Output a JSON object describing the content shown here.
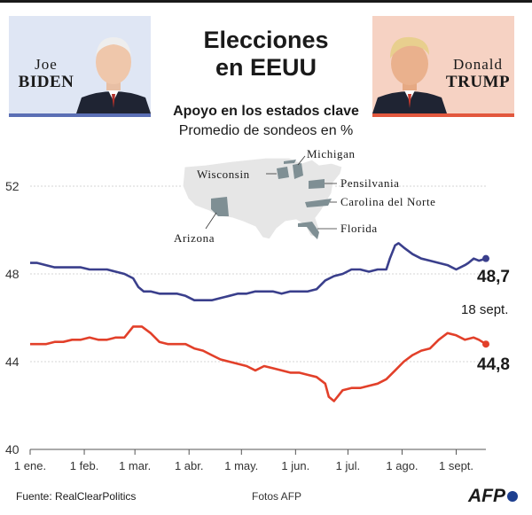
{
  "header": {
    "title_line1": "Elecciones",
    "title_line2": "en EEUU",
    "left_candidate": {
      "first": "Joe",
      "last": "Biden"
    },
    "right_candidate": {
      "first": "Donald",
      "last": "Trump"
    }
  },
  "subtitle_line1": "Apoyo en los estados clave",
  "subtitle_line2": "Promedio de sondeos en %",
  "colors": {
    "biden": "#3a3f8c",
    "trump": "#e2402a",
    "biden_panel": "#dfe6f4",
    "trump_panel": "#f6d2c3",
    "map_fill": "#e6e6e6",
    "state_fill": "#7f8f94"
  },
  "map": {
    "states": [
      "Wisconsin",
      "Michigan",
      "Pensilvania",
      "Carolina del Norte",
      "Florida",
      "Arizona"
    ]
  },
  "chart_data": {
    "type": "line",
    "ylim": [
      40,
      52
    ],
    "yticks": [
      40,
      44,
      48,
      52
    ],
    "x_tick_labels": [
      "1 ene.",
      "1 feb.",
      "1 mar.",
      "1 abr.",
      "1 may.",
      "1 jun.",
      "1 jul.",
      "1 ago.",
      "1 sept."
    ],
    "x_tick_days": [
      1,
      32,
      61,
      92,
      122,
      153,
      183,
      214,
      245
    ],
    "xlim_days": [
      1,
      262
    ],
    "series": [
      {
        "name": "Biden",
        "color": "#3a3f8c",
        "days": [
          1,
          5,
          10,
          15,
          20,
          25,
          30,
          35,
          40,
          45,
          50,
          55,
          60,
          63,
          66,
          70,
          75,
          80,
          85,
          90,
          95,
          100,
          105,
          110,
          115,
          120,
          125,
          130,
          135,
          140,
          145,
          150,
          155,
          160,
          165,
          170,
          175,
          180,
          185,
          190,
          195,
          200,
          205,
          207,
          210,
          212,
          215,
          220,
          225,
          230,
          235,
          240,
          245,
          250,
          252,
          255,
          258,
          262
        ],
        "values": [
          48.5,
          48.5,
          48.4,
          48.3,
          48.3,
          48.3,
          48.3,
          48.2,
          48.2,
          48.2,
          48.1,
          48.0,
          47.8,
          47.4,
          47.2,
          47.2,
          47.1,
          47.1,
          47.1,
          47.0,
          46.8,
          46.8,
          46.8,
          46.9,
          47.0,
          47.1,
          47.1,
          47.2,
          47.2,
          47.2,
          47.1,
          47.2,
          47.2,
          47.2,
          47.3,
          47.7,
          47.9,
          48.0,
          48.2,
          48.2,
          48.1,
          48.2,
          48.2,
          48.7,
          49.3,
          49.4,
          49.2,
          48.9,
          48.7,
          48.6,
          48.5,
          48.4,
          48.2,
          48.4,
          48.5,
          48.7,
          48.6,
          48.7
        ]
      },
      {
        "name": "Trump",
        "color": "#e2402a",
        "days": [
          1,
          5,
          10,
          15,
          20,
          25,
          30,
          35,
          40,
          45,
          50,
          55,
          60,
          65,
          70,
          75,
          80,
          85,
          90,
          95,
          100,
          105,
          110,
          115,
          120,
          125,
          130,
          135,
          140,
          145,
          150,
          155,
          160,
          165,
          170,
          172,
          175,
          180,
          185,
          190,
          195,
          200,
          205,
          210,
          215,
          220,
          225,
          230,
          235,
          240,
          245,
          250,
          255,
          258,
          262
        ],
        "values": [
          44.8,
          44.8,
          44.8,
          44.9,
          44.9,
          45.0,
          45.0,
          45.1,
          45.0,
          45.0,
          45.1,
          45.1,
          45.6,
          45.6,
          45.3,
          44.9,
          44.8,
          44.8,
          44.8,
          44.6,
          44.5,
          44.3,
          44.1,
          44.0,
          43.9,
          43.8,
          43.6,
          43.8,
          43.7,
          43.6,
          43.5,
          43.5,
          43.4,
          43.3,
          43.0,
          42.4,
          42.2,
          42.7,
          42.8,
          42.8,
          42.9,
          43.0,
          43.2,
          43.6,
          44.0,
          44.3,
          44.5,
          44.6,
          45.0,
          45.3,
          45.2,
          45.0,
          45.1,
          45.0,
          44.8
        ]
      }
    ],
    "end_labels": {
      "biden": "48,7",
      "trump": "44,8",
      "date": "18 sept."
    }
  },
  "footer": {
    "source": "Fuente: RealClearPolitics",
    "photos": "Fotos AFP",
    "agency": "AFP"
  }
}
